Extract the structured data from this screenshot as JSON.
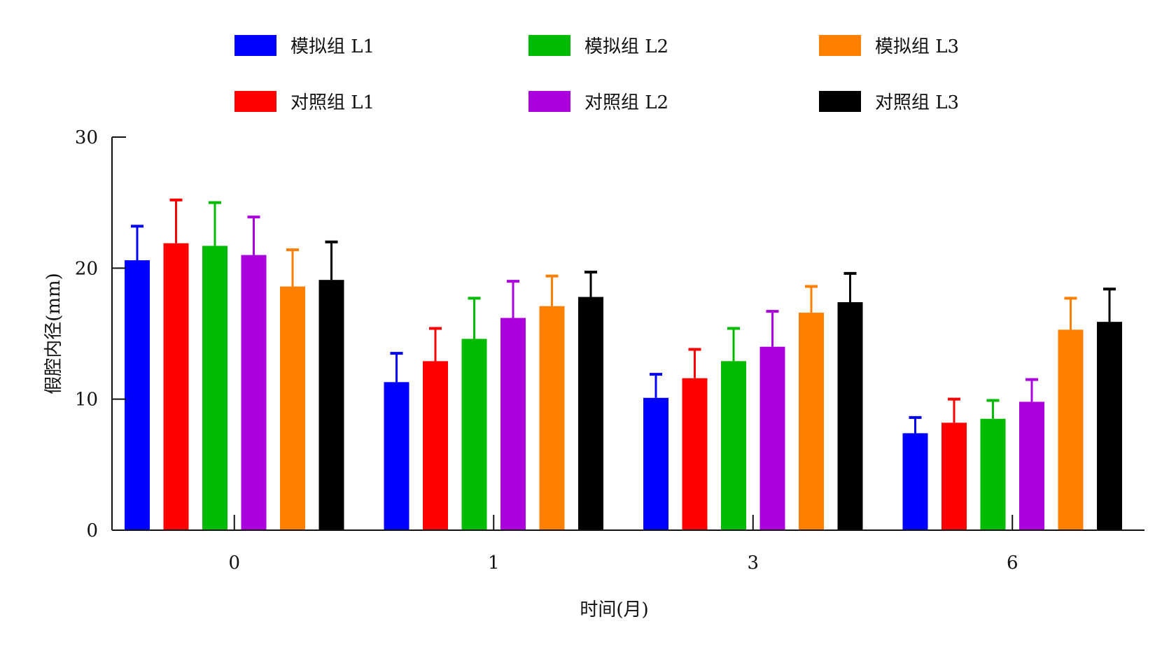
{
  "chart_data": {
    "type": "bar",
    "title": "",
    "xlabel": "时间(月)",
    "ylabel": "假腔内径(mm)",
    "ylim": [
      0,
      30
    ],
    "yticks": [
      0,
      10,
      20,
      30
    ],
    "categories": [
      "0",
      "1",
      "3",
      "6"
    ],
    "legend_position": "top",
    "error_bars": true,
    "series": [
      {
        "name": "模拟组 L1",
        "color": "#0000ff",
        "values": [
          20.6,
          11.3,
          10.1,
          7.4
        ],
        "errors": [
          2.6,
          2.2,
          1.8,
          1.2
        ]
      },
      {
        "name": "对照组 L1",
        "color": "#ff0000",
        "values": [
          21.9,
          12.9,
          11.6,
          8.2
        ],
        "errors": [
          3.3,
          2.5,
          2.2,
          1.8
        ]
      },
      {
        "name": "模拟组 L2",
        "color": "#00bb00",
        "values": [
          21.7,
          14.6,
          12.9,
          8.5
        ],
        "errors": [
          3.3,
          3.1,
          2.5,
          1.4
        ]
      },
      {
        "name": "对照组 L2",
        "color": "#aa00dd",
        "values": [
          21.0,
          16.2,
          14.0,
          9.8
        ],
        "errors": [
          2.9,
          2.8,
          2.7,
          1.7
        ]
      },
      {
        "name": "模拟组 L3",
        "color": "#ff8000",
        "values": [
          18.6,
          17.1,
          16.6,
          15.3
        ],
        "errors": [
          2.8,
          2.3,
          2.0,
          2.4
        ]
      },
      {
        "name": "对照组 L3",
        "color": "#000000",
        "values": [
          19.1,
          17.8,
          17.4,
          15.9
        ],
        "errors": [
          2.9,
          1.9,
          2.2,
          2.5
        ]
      }
    ],
    "legend_order": [
      "模拟组 L1",
      "模拟组 L2",
      "模拟组 L3",
      "对照组 L1",
      "对照组 L2",
      "对照组 L3"
    ]
  }
}
